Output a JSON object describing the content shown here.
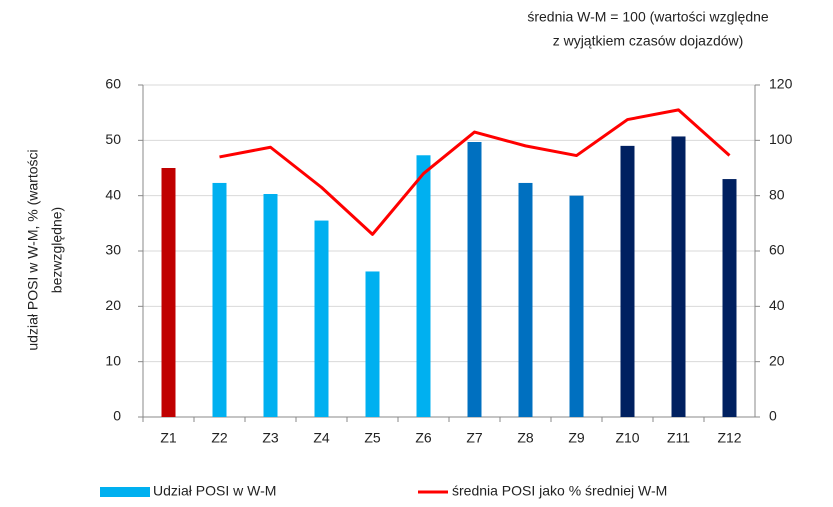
{
  "chart_data": {
    "type": "bar_line",
    "annotation": [
      "średnia W-M = 100 (wartości względne",
      "z wyjątkiem czasów dojazdów)"
    ],
    "y_label": [
      "udział POSI w W-M, % (wartości",
      "bezwzględne)"
    ],
    "categories": [
      "Z1",
      "Z2",
      "Z3",
      "Z4",
      "Z5",
      "Z6",
      "Z7",
      "Z8",
      "Z9",
      "Z10",
      "Z11",
      "Z12"
    ],
    "series": [
      {
        "name": "Udział POSI w W-M",
        "type": "bar",
        "color": "#00b0f0",
        "colors": [
          "#c00000",
          "#00b0f0",
          "#00b0f0",
          "#00b0f0",
          "#00b0f0",
          "#00b0f0",
          "#0070c0",
          "#0070c0",
          "#0070c0",
          "#002060",
          "#002060",
          "#002060"
        ],
        "values": [
          45,
          42.3,
          40.3,
          35.5,
          26.3,
          47.3,
          49.7,
          42.3,
          40,
          49,
          50.7,
          43
        ]
      },
      {
        "name": "średnia POSI jako % średniej W-M",
        "type": "line",
        "axis": "y2",
        "color": "#ff0000",
        "values": [
          null,
          94,
          97.5,
          83,
          66,
          88,
          103,
          98,
          94.5,
          107.5,
          111,
          94.5
        ]
      }
    ],
    "ylim": [
      0,
      60
    ],
    "yticks": [
      0,
      10,
      20,
      30,
      40,
      50,
      60
    ],
    "y2lim": [
      0,
      120
    ],
    "y2ticks": [
      0,
      20,
      40,
      60,
      80,
      100,
      120
    ],
    "grid": true,
    "legend": "bottom"
  }
}
